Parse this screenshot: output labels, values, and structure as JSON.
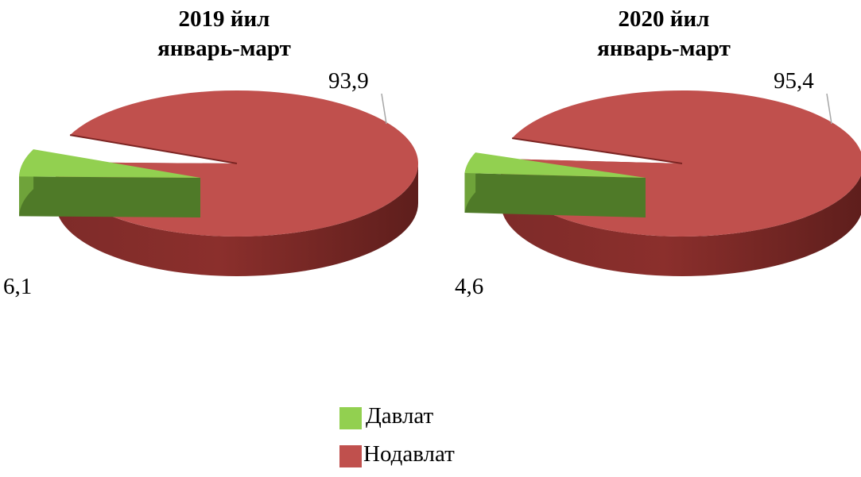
{
  "chart_data": [
    {
      "type": "pie",
      "title": "2019 йил\nянварь-март",
      "categories": [
        "Давлат",
        "Нодавлат"
      ],
      "values": [
        6.1,
        93.9
      ],
      "data_labels": [
        "6,1",
        "93,9"
      ]
    },
    {
      "type": "pie",
      "title": "2020 йил\nянварь-март",
      "categories": [
        "Давлат",
        "Нодавлат"
      ],
      "values": [
        4.6,
        95.4
      ],
      "data_labels": [
        "4,6",
        "95,4"
      ]
    }
  ],
  "legend": {
    "position": "bottom",
    "items": [
      {
        "label": "Давлат",
        "color": "#92D050"
      },
      {
        "label": "Нодавлат",
        "color": "#C0504D"
      }
    ]
  },
  "colors": {
    "davlat": "#92D050",
    "davlat_side": "#4F7A28",
    "nodavlat": "#C0504D",
    "nodavlat_side": "#8B2F2C"
  }
}
